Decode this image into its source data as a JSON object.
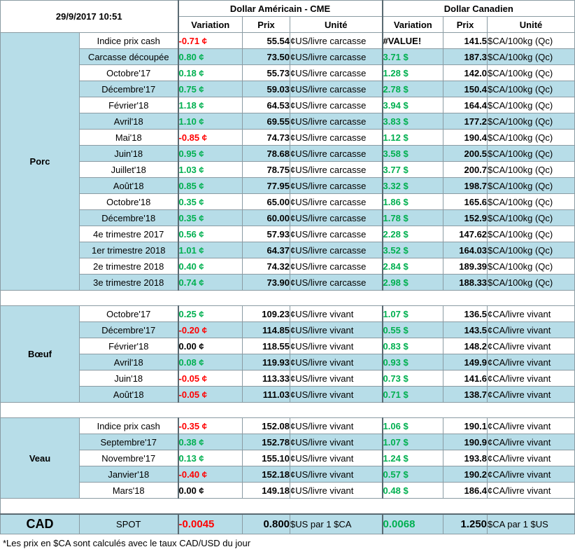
{
  "header": {
    "date": "29/9/2017 10:51",
    "usd_title": "Dollar Américain - CME",
    "cad_title": "Dollar Canadien",
    "col_variation": "Variation",
    "col_prix": "Prix",
    "col_unite": "Unité"
  },
  "porc": {
    "label": "Porc",
    "rows": [
      {
        "label": "Indice prix cash",
        "usd_var": "-0.71 ¢",
        "usd_sign": "neg",
        "usd_prix": "55.54",
        "usd_unit": "¢US/livre carcasse",
        "cad_var": "#VALUE!",
        "cad_sign": "err",
        "cad_prix": "141.5",
        "cad_unit": "$CA/100kg (Qc)"
      },
      {
        "label": "Carcasse découpée",
        "usd_var": "0.80 ¢",
        "usd_sign": "pos",
        "usd_prix": "73.50",
        "usd_unit": "¢US/livre carcasse",
        "cad_var": "3.71 $",
        "cad_sign": "pos",
        "cad_prix": "187.3",
        "cad_unit": "$CA/100kg (Qc)"
      },
      {
        "label": "Octobre'17",
        "usd_var": "0.18 ¢",
        "usd_sign": "pos",
        "usd_prix": "55.73",
        "usd_unit": "¢US/livre carcasse",
        "cad_var": "1.28 $",
        "cad_sign": "pos",
        "cad_prix": "142.0",
        "cad_unit": "$CA/100kg (Qc)"
      },
      {
        "label": "Décembre'17",
        "usd_var": "0.75 ¢",
        "usd_sign": "pos",
        "usd_prix": "59.03",
        "usd_unit": "¢US/livre carcasse",
        "cad_var": "2.78 $",
        "cad_sign": "pos",
        "cad_prix": "150.4",
        "cad_unit": "$CA/100kg (Qc)"
      },
      {
        "label": "Février'18",
        "usd_var": "1.18 ¢",
        "usd_sign": "pos",
        "usd_prix": "64.53",
        "usd_unit": "¢US/livre carcasse",
        "cad_var": "3.94 $",
        "cad_sign": "pos",
        "cad_prix": "164.4",
        "cad_unit": "$CA/100kg (Qc)"
      },
      {
        "label": "Avril'18",
        "usd_var": "1.10 ¢",
        "usd_sign": "pos",
        "usd_prix": "69.55",
        "usd_unit": "¢US/livre carcasse",
        "cad_var": "3.83 $",
        "cad_sign": "pos",
        "cad_prix": "177.2",
        "cad_unit": "$CA/100kg (Qc)"
      },
      {
        "label": "Mai'18",
        "usd_var": "-0.85 ¢",
        "usd_sign": "neg",
        "usd_prix": "74.73",
        "usd_unit": "¢US/livre carcasse",
        "cad_var": "1.12 $",
        "cad_sign": "pos",
        "cad_prix": "190.4",
        "cad_unit": "$CA/100kg (Qc)"
      },
      {
        "label": "Juin'18",
        "usd_var": "0.95 ¢",
        "usd_sign": "pos",
        "usd_prix": "78.68",
        "usd_unit": "¢US/livre carcasse",
        "cad_var": "3.58 $",
        "cad_sign": "pos",
        "cad_prix": "200.5",
        "cad_unit": "$CA/100kg (Qc)"
      },
      {
        "label": "Juillet'18",
        "usd_var": "1.03 ¢",
        "usd_sign": "pos",
        "usd_prix": "78.75",
        "usd_unit": "¢US/livre carcasse",
        "cad_var": "3.77 $",
        "cad_sign": "pos",
        "cad_prix": "200.7",
        "cad_unit": "$CA/100kg (Qc)"
      },
      {
        "label": "Août'18",
        "usd_var": "0.85 ¢",
        "usd_sign": "pos",
        "usd_prix": "77.95",
        "usd_unit": "¢US/livre carcasse",
        "cad_var": "3.32 $",
        "cad_sign": "pos",
        "cad_prix": "198.7",
        "cad_unit": "$CA/100kg (Qc)"
      },
      {
        "label": "Octobre'18",
        "usd_var": "0.35 ¢",
        "usd_sign": "pos",
        "usd_prix": "65.00",
        "usd_unit": "¢US/livre carcasse",
        "cad_var": "1.86 $",
        "cad_sign": "pos",
        "cad_prix": "165.6",
        "cad_unit": "$CA/100kg (Qc)"
      },
      {
        "label": "Décembre'18",
        "usd_var": "0.35 ¢",
        "usd_sign": "pos",
        "usd_prix": "60.00",
        "usd_unit": "¢US/livre carcasse",
        "cad_var": "1.78 $",
        "cad_sign": "pos",
        "cad_prix": "152.9",
        "cad_unit": "$CA/100kg (Qc)"
      },
      {
        "label": "4e trimestre 2017",
        "usd_var": "0.56 ¢",
        "usd_sign": "pos",
        "usd_prix": "57.93",
        "usd_unit": "¢US/livre carcasse",
        "cad_var": "2.28 $",
        "cad_sign": "pos",
        "cad_prix": "147.62",
        "cad_unit": "$CA/100kg (Qc)"
      },
      {
        "label": "1er trimestre 2018",
        "usd_var": "1.01 ¢",
        "usd_sign": "pos",
        "usd_prix": "64.37",
        "usd_unit": "¢US/livre carcasse",
        "cad_var": "3.52 $",
        "cad_sign": "pos",
        "cad_prix": "164.03",
        "cad_unit": "$CA/100kg (Qc)"
      },
      {
        "label": "2e trimestre 2018",
        "usd_var": "0.40 ¢",
        "usd_sign": "pos",
        "usd_prix": "74.32",
        "usd_unit": "¢US/livre carcasse",
        "cad_var": "2.84 $",
        "cad_sign": "pos",
        "cad_prix": "189.39",
        "cad_unit": "$CA/100kg (Qc)"
      },
      {
        "label": "3e trimestre 2018",
        "usd_var": "0.74 ¢",
        "usd_sign": "pos",
        "usd_prix": "73.90",
        "usd_unit": "¢US/livre carcasse",
        "cad_var": "2.98 $",
        "cad_sign": "pos",
        "cad_prix": "188.33",
        "cad_unit": "$CA/100kg (Qc)"
      }
    ]
  },
  "boeuf": {
    "label": "Bœuf",
    "rows": [
      {
        "label": "Octobre'17",
        "usd_var": "0.25 ¢",
        "usd_sign": "pos",
        "usd_prix": "109.23",
        "usd_unit": "¢US/livre vivant",
        "cad_var": "1.07 $",
        "cad_sign": "pos",
        "cad_prix": "136.5",
        "cad_unit": "¢CA/livre vivant"
      },
      {
        "label": "Décembre'17",
        "usd_var": "-0.20 ¢",
        "usd_sign": "neg",
        "usd_prix": "114.85",
        "usd_unit": "¢US/livre vivant",
        "cad_var": "0.55 $",
        "cad_sign": "pos",
        "cad_prix": "143.5",
        "cad_unit": "¢CA/livre vivant"
      },
      {
        "label": "Février'18",
        "usd_var": "0.00 ¢",
        "usd_sign": "zer",
        "usd_prix": "118.55",
        "usd_unit": "¢US/livre vivant",
        "cad_var": "0.83 $",
        "cad_sign": "pos",
        "cad_prix": "148.2",
        "cad_unit": "¢CA/livre vivant"
      },
      {
        "label": "Avril'18",
        "usd_var": "0.08 ¢",
        "usd_sign": "pos",
        "usd_prix": "119.93",
        "usd_unit": "¢US/livre vivant",
        "cad_var": "0.93 $",
        "cad_sign": "pos",
        "cad_prix": "149.9",
        "cad_unit": "¢CA/livre vivant"
      },
      {
        "label": "Juin'18",
        "usd_var": "-0.05 ¢",
        "usd_sign": "neg",
        "usd_prix": "113.33",
        "usd_unit": "¢US/livre vivant",
        "cad_var": "0.73 $",
        "cad_sign": "pos",
        "cad_prix": "141.6",
        "cad_unit": "¢CA/livre vivant"
      },
      {
        "label": "Août'18",
        "usd_var": "-0.05 ¢",
        "usd_sign": "neg",
        "usd_prix": "111.03",
        "usd_unit": "¢US/livre vivant",
        "cad_var": "0.71 $",
        "cad_sign": "pos",
        "cad_prix": "138.7",
        "cad_unit": "¢CA/livre vivant"
      }
    ]
  },
  "veau": {
    "label": "Veau",
    "rows": [
      {
        "label": "Indice prix cash",
        "usd_var": "-0.35 ¢",
        "usd_sign": "neg",
        "usd_prix": "152.08",
        "usd_unit": "¢US/livre vivant",
        "cad_var": "1.06 $",
        "cad_sign": "pos",
        "cad_prix": "190.1",
        "cad_unit": "¢CA/livre vivant"
      },
      {
        "label": "Septembre'17",
        "usd_var": "0.38 ¢",
        "usd_sign": "pos",
        "usd_prix": "152.78",
        "usd_unit": "¢US/livre vivant",
        "cad_var": "1.07 $",
        "cad_sign": "pos",
        "cad_prix": "190.9",
        "cad_unit": "¢CA/livre vivant"
      },
      {
        "label": "Novembre'17",
        "usd_var": "0.13 ¢",
        "usd_sign": "pos",
        "usd_prix": "155.10",
        "usd_unit": "¢US/livre vivant",
        "cad_var": "1.24 $",
        "cad_sign": "pos",
        "cad_prix": "193.8",
        "cad_unit": "¢CA/livre vivant"
      },
      {
        "label": "Janvier'18",
        "usd_var": "-0.40 ¢",
        "usd_sign": "neg",
        "usd_prix": "152.18",
        "usd_unit": "¢US/livre vivant",
        "cad_var": "0.57 $",
        "cad_sign": "pos",
        "cad_prix": "190.2",
        "cad_unit": "¢CA/livre vivant"
      },
      {
        "label": "Mars'18",
        "usd_var": "0.00 ¢",
        "usd_sign": "zer",
        "usd_prix": "149.18",
        "usd_unit": "¢US/livre vivant",
        "cad_var": "0.48 $",
        "cad_sign": "pos",
        "cad_prix": "186.4",
        "cad_unit": "¢CA/livre vivant"
      }
    ]
  },
  "cad": {
    "label": "CAD",
    "row_label": "SPOT",
    "usd_var": "-0.0045",
    "usd_sign": "neg",
    "usd_prix": "0.800",
    "usd_unit": "$US par 1 $CA",
    "cad_var": "0.0068",
    "cad_sign": "pos",
    "cad_prix": "1.250",
    "cad_unit": "$CA par 1 $US"
  },
  "footnote": "*Les  prix en $CA sont calculés avec le taux CAD/USD du jour",
  "colors": {
    "positive": "#00b050",
    "negative": "#ff0000",
    "band": "#b7dde8",
    "grid": "#8a9ba3"
  }
}
